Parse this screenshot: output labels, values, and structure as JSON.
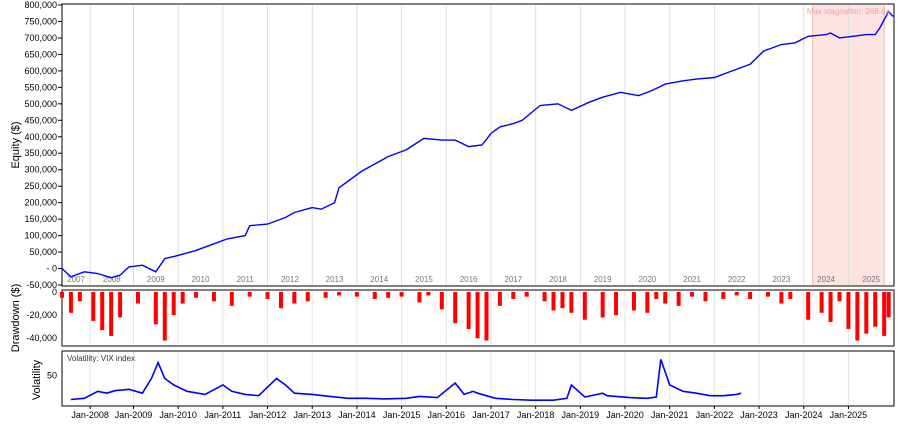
{
  "chart_data": [
    {
      "type": "line",
      "panel": "equity",
      "ylabel": "Equity ($)",
      "ylim": [
        -50000,
        800000
      ],
      "y_ticks": [
        "-50,000",
        "- 0",
        "50,000",
        "100,000",
        "150,000",
        "200,000",
        "250,000",
        "300,000",
        "350,000",
        "400,000",
        "450,000",
        "500,000",
        "550,000",
        "600,000",
        "650,000",
        "700,000",
        "750,000",
        "800,000"
      ],
      "year_labels": [
        "2007",
        "2008",
        "2009",
        "2010",
        "2011",
        "2012",
        "2013",
        "2014",
        "2015",
        "2016",
        "2017",
        "2018",
        "2019",
        "2020",
        "2021",
        "2022",
        "2023",
        "2024",
        "2025"
      ],
      "x": [
        2006.8,
        2007.0,
        2007.3,
        2007.6,
        2007.9,
        2008.1,
        2008.3,
        2008.6,
        2008.9,
        2009.1,
        2009.4,
        2009.8,
        2010.2,
        2010.5,
        2010.9,
        2011.0,
        2011.4,
        2011.8,
        2012.0,
        2012.4,
        2012.6,
        2012.9,
        2013.0,
        2013.5,
        2013.9,
        2014.1,
        2014.5,
        2014.9,
        2015.3,
        2015.6,
        2015.9,
        2016.2,
        2016.4,
        2016.6,
        2016.9,
        2017.1,
        2017.5,
        2017.9,
        2018.2,
        2018.6,
        2018.9,
        2019.3,
        2019.7,
        2020.0,
        2020.3,
        2020.7,
        2021.0,
        2021.4,
        2021.8,
        2022.2,
        2022.5,
        2022.9,
        2023.2,
        2023.5,
        2023.9,
        2024.0,
        2024.2,
        2024.5,
        2024.8,
        2025.0,
        2025.1,
        2025.3,
        2025.4
      ],
      "values": [
        0,
        -25000,
        -10000,
        -15000,
        -28000,
        -20000,
        5000,
        10000,
        -10000,
        30000,
        40000,
        55000,
        75000,
        90000,
        100000,
        130000,
        135000,
        155000,
        170000,
        185000,
        180000,
        200000,
        245000,
        295000,
        325000,
        340000,
        360000,
        395000,
        390000,
        390000,
        370000,
        375000,
        410000,
        430000,
        440000,
        450000,
        495000,
        500000,
        480000,
        505000,
        520000,
        535000,
        525000,
        540000,
        560000,
        570000,
        575000,
        580000,
        600000,
        620000,
        660000,
        680000,
        685000,
        705000,
        710000,
        715000,
        700000,
        705000,
        710000,
        710000,
        730000,
        780000,
        765000
      ],
      "annotation": "Max stagnation: 268 da",
      "stagnation_period": [
        2023.6,
        2025.2
      ],
      "line_color": "#0000ff",
      "stagnation_color": "#ff0000"
    },
    {
      "type": "bar",
      "panel": "drawdown",
      "ylabel": "Drawdown ($)",
      "ylim": [
        -45000,
        0
      ],
      "y_ticks": [
        "0",
        "-20,000",
        "-40,000"
      ],
      "x": [
        2006.8,
        2007.0,
        2007.2,
        2007.5,
        2007.7,
        2007.9,
        2008.1,
        2008.5,
        2008.9,
        2009.1,
        2009.3,
        2009.5,
        2009.8,
        2010.2,
        2010.6,
        2011.0,
        2011.4,
        2011.7,
        2012.0,
        2012.3,
        2012.7,
        2013.0,
        2013.4,
        2013.8,
        2014.1,
        2014.4,
        2014.8,
        2015.0,
        2015.3,
        2015.6,
        2015.9,
        2016.1,
        2016.3,
        2016.6,
        2016.9,
        2017.2,
        2017.6,
        2017.8,
        2018.0,
        2018.2,
        2018.5,
        2018.9,
        2019.2,
        2019.6,
        2019.9,
        2020.1,
        2020.3,
        2020.6,
        2020.9,
        2021.2,
        2021.6,
        2021.9,
        2022.2,
        2022.6,
        2022.9,
        2023.1,
        2023.5,
        2023.8,
        2024.0,
        2024.2,
        2024.4,
        2024.6,
        2024.8,
        2025.0,
        2025.2,
        2025.3
      ],
      "values": [
        -5000,
        -18000,
        -8000,
        -25000,
        -33000,
        -38000,
        -22000,
        -10000,
        -28000,
        -42000,
        -20000,
        -10000,
        -5000,
        -8000,
        -12000,
        -4000,
        -6000,
        -14000,
        -10000,
        -8000,
        -5000,
        -3000,
        -4000,
        -6000,
        -5000,
        -4000,
        -9000,
        -3000,
        -15000,
        -27000,
        -32000,
        -40000,
        -42000,
        -12000,
        -6000,
        -4000,
        -8000,
        -16000,
        -14000,
        -18000,
        -24000,
        -22000,
        -20000,
        -16000,
        -18000,
        -6000,
        -10000,
        -12000,
        -4000,
        -8000,
        -6000,
        -3000,
        -6000,
        -4000,
        -10000,
        -6000,
        -24000,
        -18000,
        -26000,
        -8000,
        -32000,
        -42000,
        -36000,
        -30000,
        -38000,
        -22000
      ],
      "bar_color": "#ff0000"
    },
    {
      "type": "line",
      "panel": "volatility",
      "ylabel": "Volatility",
      "series_label": "Volatility: VIX index",
      "y_ticks": [
        "50"
      ],
      "ylim": [
        5,
        85
      ],
      "x_ticks": [
        "Jan-2008",
        "Jan-2009",
        "Jan-2010",
        "Jan-2011",
        "Jan-2012",
        "Jan-2013",
        "Jan-2014",
        "Jan-2015",
        "Jan-2016",
        "Jan-2017",
        "Jan-2018",
        "Jan-2019",
        "Jan-2020",
        "Jan-2021",
        "Jan-2022",
        "Jan-2023",
        "Jan-2024",
        "Jan-2025"
      ],
      "x": [
        2007.0,
        2007.3,
        2007.6,
        2007.8,
        2008.0,
        2008.3,
        2008.6,
        2008.8,
        2008.95,
        2009.1,
        2009.3,
        2009.6,
        2010.0,
        2010.4,
        2010.6,
        2010.9,
        2011.2,
        2011.6,
        2011.8,
        2012.0,
        2012.4,
        2012.8,
        2013.2,
        2013.6,
        2014.0,
        2014.5,
        2014.8,
        2015.2,
        2015.6,
        2015.8,
        2016.0,
        2016.1,
        2016.5,
        2016.9,
        2017.3,
        2017.8,
        2018.1,
        2018.2,
        2018.5,
        2018.9,
        2019.0,
        2019.5,
        2019.9,
        2020.1,
        2020.2,
        2020.4,
        2020.7,
        2021.0,
        2021.3,
        2021.6,
        2021.9,
        2022.0
      ],
      "values": [
        12,
        14,
        25,
        22,
        26,
        28,
        22,
        45,
        70,
        45,
        35,
        25,
        20,
        35,
        25,
        20,
        18,
        45,
        35,
        22,
        20,
        17,
        14,
        14,
        13,
        14,
        17,
        15,
        38,
        20,
        25,
        22,
        14,
        12,
        11,
        11,
        14,
        35,
        16,
        22,
        18,
        15,
        14,
        16,
        75,
        35,
        25,
        22,
        18,
        18,
        20,
        22
      ],
      "line_color": "#0000ff"
    }
  ]
}
